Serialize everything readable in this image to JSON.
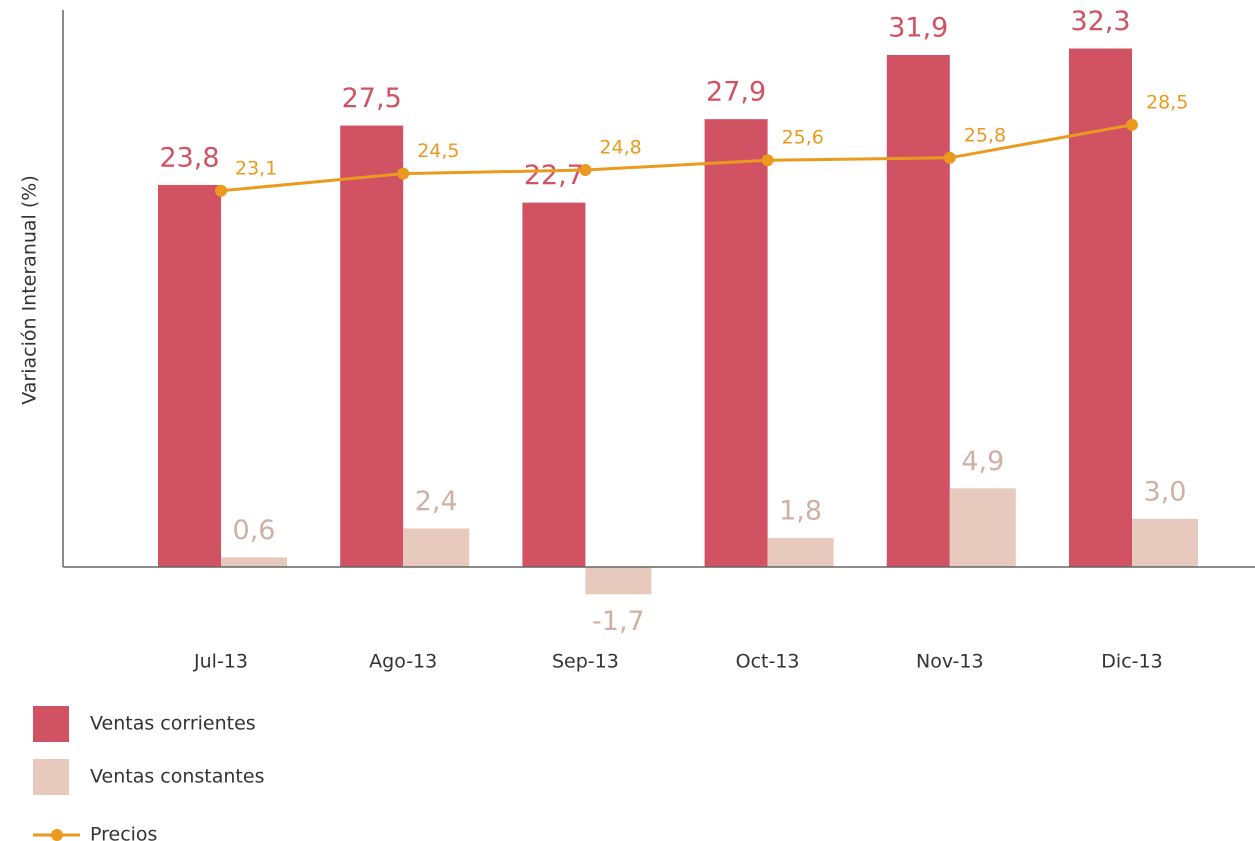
{
  "chart_data": {
    "type": "bar",
    "y_label": "Variación Interanual (%)",
    "categories": [
      "Jul-13",
      "Ago-13",
      "Sep-13",
      "Oct-13",
      "Nov-13",
      "Dic-13"
    ],
    "ylim": [
      0,
      34.7
    ],
    "y2lim": [
      -7.7,
      37.9
    ],
    "series": [
      {
        "name": "Ventas corrientes",
        "type": "bar",
        "color": "#d05263",
        "values": [
          23.8,
          27.5,
          22.7,
          27.9,
          31.9,
          32.3
        ],
        "value_labels": [
          "23,8",
          "27,5",
          "22,7",
          "27,9",
          "31,9",
          "32,3"
        ]
      },
      {
        "name": "Ventas constantes",
        "type": "bar",
        "color": "#e8c9bd",
        "values": [
          0.6,
          2.4,
          -1.7,
          1.8,
          4.9,
          3.0
        ],
        "value_labels": [
          "0,6",
          "2,4",
          "-1,7",
          "1,8",
          "4,9",
          "3,0"
        ]
      },
      {
        "name": "Precios",
        "type": "line",
        "axis": "y2",
        "color": "#eb9a1e",
        "values": [
          23.1,
          24.5,
          24.8,
          25.6,
          25.8,
          28.5
        ],
        "value_labels": [
          "23,1",
          "24,5",
          "24,8",
          "25,6",
          "25,8",
          "28,5"
        ]
      }
    ]
  }
}
